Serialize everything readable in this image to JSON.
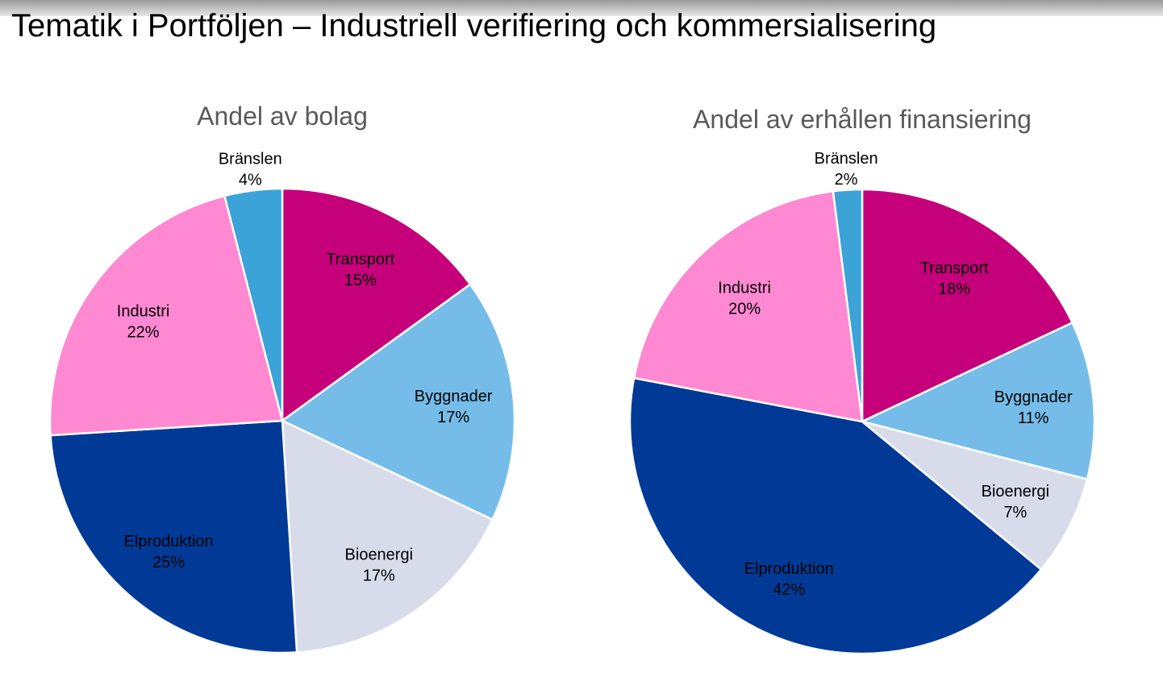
{
  "page": {
    "title": "Tematik i Portföljen – Industriell verifiering och kommersialisering"
  },
  "chart_data": [
    {
      "type": "pie",
      "title": "Andel av bolag",
      "categories": [
        "Transport",
        "Byggnader",
        "Bioenergi",
        "Elproduktion",
        "Industri",
        "Bränslen"
      ],
      "values": [
        15,
        17,
        17,
        25,
        22,
        4
      ],
      "labels": [
        "15%",
        "17%",
        "17%",
        "25%",
        "22%",
        "4%"
      ],
      "colors": [
        "#C5007A",
        "#75BDE8",
        "#D8DBEA",
        "#003A96",
        "#FF88D2",
        "#3BA3D8"
      ],
      "start": "12 o'clock, clockwise"
    },
    {
      "type": "pie",
      "title": "Andel av erhållen finansiering",
      "categories": [
        "Transport",
        "Byggnader",
        "Bioenergi",
        "Elproduktion",
        "Industri",
        "Bränslen"
      ],
      "values": [
        18,
        11,
        7,
        42,
        20,
        2
      ],
      "labels": [
        "18%",
        "11%",
        "7%",
        "42%",
        "20%",
        "2%"
      ],
      "colors": [
        "#C5007A",
        "#75BDE8",
        "#D8DBEA",
        "#003A96",
        "#FF88D2",
        "#3BA3D8"
      ],
      "start": "12 o'clock, clockwise"
    }
  ]
}
